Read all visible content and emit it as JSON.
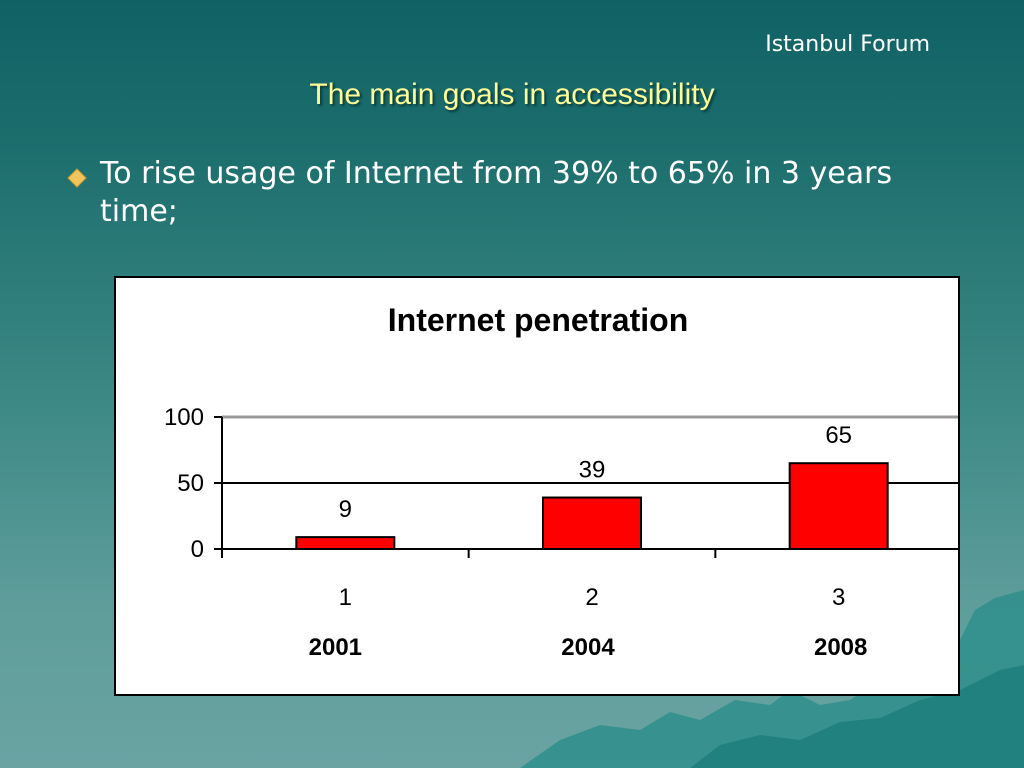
{
  "slide": {
    "brand": "Istanbul Forum",
    "title": "The main goals in accessibility",
    "bullet": "To rise usage of Internet from 39% to 65% in 3 years time;"
  },
  "colors": {
    "background_top": "#0f6164",
    "background_bottom": "#6aa3a2",
    "title": "#ffff99",
    "bullet_icon": "#f2c55c",
    "bar_fill": "#ff0000"
  },
  "icons": {
    "bullet": "diamond-bullet-icon"
  },
  "chart_data": {
    "type": "bar",
    "title": "Internet penetration",
    "categories": [
      "1",
      "2",
      "3"
    ],
    "category_sublabels": [
      "2001",
      "2004",
      "2008"
    ],
    "values": [
      9,
      39,
      65
    ],
    "data_labels": [
      "9",
      "39",
      "65"
    ],
    "ylim": [
      0,
      100
    ],
    "yticks": [
      0,
      50,
      100
    ],
    "ytick_labels": [
      "0",
      "50",
      "100"
    ],
    "grid": true,
    "legend": "none",
    "xlabel": "",
    "ylabel": ""
  }
}
